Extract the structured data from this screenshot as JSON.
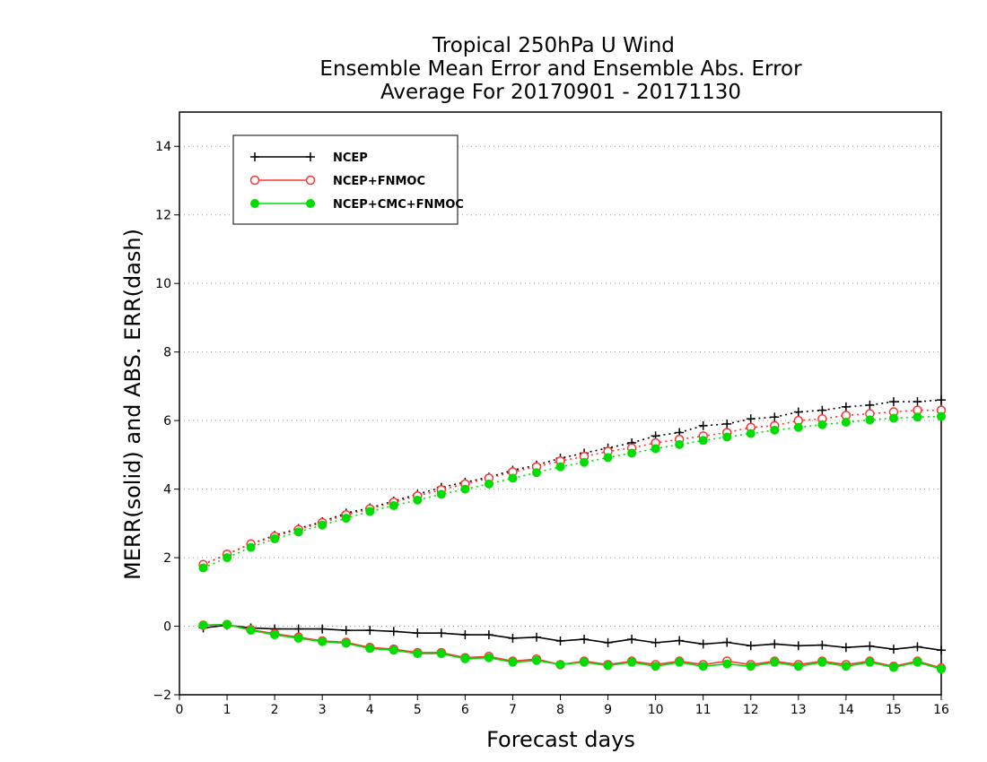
{
  "chart_data": {
    "type": "line",
    "title": [
      "Tropical 250hPa U Wind",
      "Ensemble Mean Error and Ensemble Abs. Error",
      "Average For 20170901 - 20171130"
    ],
    "xlabel": "Forecast days",
    "ylabel": "MERR(solid) and ABS. ERR(dash)",
    "xlim": [
      0,
      16
    ],
    "ylim": [
      -2,
      15
    ],
    "xticks": [
      0,
      1,
      2,
      3,
      4,
      5,
      6,
      7,
      8,
      9,
      10,
      11,
      12,
      13,
      14,
      15,
      16
    ],
    "yticks": [
      -2,
      0,
      2,
      4,
      6,
      8,
      10,
      12,
      14
    ],
    "grid": "horizontal dotted",
    "legend_position": "top-left",
    "x": [
      0.5,
      1.0,
      1.5,
      2.0,
      2.5,
      3.0,
      3.5,
      4.0,
      4.5,
      5.0,
      5.5,
      6.0,
      6.5,
      7.0,
      7.5,
      8.0,
      8.5,
      9.0,
      9.5,
      10.0,
      10.5,
      11.0,
      11.5,
      12.0,
      12.5,
      13.0,
      13.5,
      14.0,
      14.5,
      15.0,
      15.5,
      16.0
    ],
    "series": [
      {
        "name": "NCEP",
        "color": "#000000",
        "marker": "plus",
        "abs_err": [
          1.8,
          2.1,
          2.4,
          2.65,
          2.85,
          3.05,
          3.3,
          3.45,
          3.65,
          3.85,
          4.05,
          4.2,
          4.35,
          4.55,
          4.7,
          4.9,
          5.05,
          5.2,
          5.35,
          5.55,
          5.65,
          5.85,
          5.9,
          6.05,
          6.1,
          6.25,
          6.3,
          6.4,
          6.45,
          6.55,
          6.55,
          6.6
        ],
        "mean_err": [
          -0.05,
          0.03,
          -0.05,
          -0.08,
          -0.08,
          -0.08,
          -0.12,
          -0.12,
          -0.15,
          -0.2,
          -0.2,
          -0.25,
          -0.25,
          -0.35,
          -0.32,
          -0.43,
          -0.38,
          -0.48,
          -0.38,
          -0.48,
          -0.42,
          -0.52,
          -0.47,
          -0.57,
          -0.52,
          -0.57,
          -0.55,
          -0.62,
          -0.58,
          -0.67,
          -0.6,
          -0.7
        ]
      },
      {
        "name": "NCEP+FNMOC",
        "color": "#ff3333",
        "marker": "open-circle",
        "abs_err": [
          1.8,
          2.1,
          2.4,
          2.62,
          2.82,
          3.02,
          3.25,
          3.42,
          3.62,
          3.8,
          3.98,
          4.15,
          4.32,
          4.5,
          4.65,
          4.82,
          4.95,
          5.1,
          5.2,
          5.35,
          5.45,
          5.55,
          5.65,
          5.8,
          5.85,
          6.0,
          6.05,
          6.15,
          6.2,
          6.25,
          6.3,
          6.3
        ],
        "mean_err": [
          0.03,
          0.05,
          -0.1,
          -0.22,
          -0.32,
          -0.43,
          -0.47,
          -0.62,
          -0.67,
          -0.77,
          -0.77,
          -0.92,
          -0.88,
          -1.02,
          -0.96,
          -1.12,
          -1.02,
          -1.12,
          -1.02,
          -1.12,
          -1.02,
          -1.12,
          -1.02,
          -1.12,
          -1.02,
          -1.12,
          -1.02,
          -1.12,
          -1.02,
          -1.17,
          -1.02,
          -1.22
        ]
      },
      {
        "name": "NCEP+CMC+FNMOC",
        "color": "#00dd00",
        "marker": "filled-circle",
        "abs_err": [
          1.7,
          2.0,
          2.3,
          2.55,
          2.75,
          2.95,
          3.15,
          3.35,
          3.52,
          3.68,
          3.85,
          4.0,
          4.15,
          4.32,
          4.48,
          4.65,
          4.78,
          4.92,
          5.05,
          5.18,
          5.3,
          5.42,
          5.52,
          5.62,
          5.72,
          5.8,
          5.88,
          5.95,
          6.02,
          6.07,
          6.1,
          6.12
        ],
        "mean_err": [
          0.03,
          0.05,
          -0.12,
          -0.25,
          -0.35,
          -0.45,
          -0.5,
          -0.65,
          -0.7,
          -0.8,
          -0.8,
          -0.95,
          -0.92,
          -1.05,
          -1.0,
          -1.12,
          -1.05,
          -1.15,
          -1.05,
          -1.17,
          -1.05,
          -1.17,
          -1.1,
          -1.17,
          -1.05,
          -1.17,
          -1.05,
          -1.17,
          -1.05,
          -1.2,
          -1.05,
          -1.25
        ]
      }
    ]
  }
}
